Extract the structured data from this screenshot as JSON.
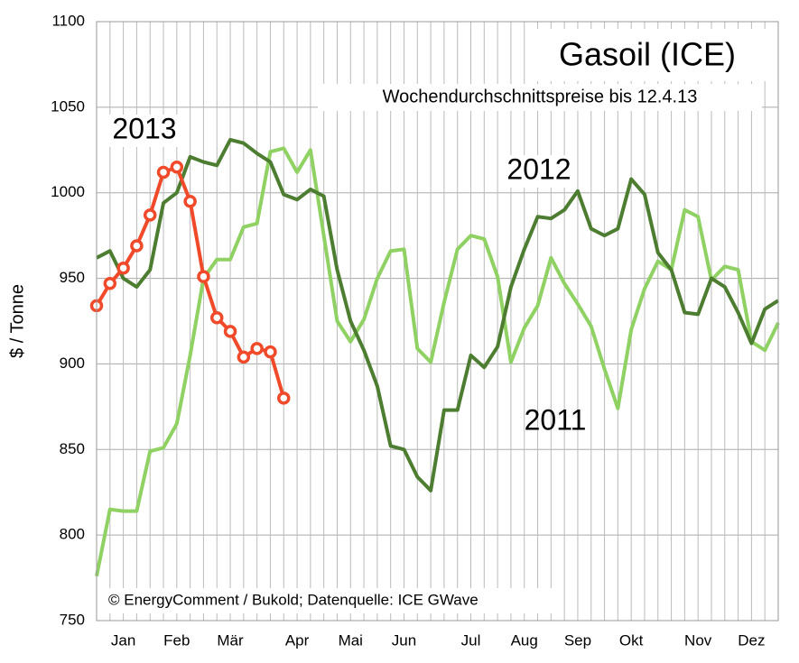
{
  "chart_data": {
    "type": "line",
    "title": "Gasoil (ICE)",
    "subtitle": "Wochendurchschnittspreise bis 12.4.13",
    "y_label": "$ / Tonne",
    "annotation": "© EnergyComment / Bukold; Datenquelle: ICE GWave",
    "categories": [
      null,
      null,
      "Jan",
      null,
      null,
      null,
      "Feb",
      null,
      null,
      null,
      "Mär",
      null,
      null,
      null,
      null,
      "Apr",
      null,
      null,
      null,
      "Mai",
      null,
      null,
      null,
      "Jun",
      null,
      null,
      null,
      null,
      "Jul",
      null,
      null,
      null,
      "Aug",
      null,
      null,
      null,
      "Sep",
      null,
      null,
      null,
      "Okt",
      null,
      null,
      null,
      null,
      "Nov",
      null,
      null,
      null,
      "Dez",
      null,
      null
    ],
    "ylim": [
      750,
      1100
    ],
    "yticks": [
      750,
      800,
      850,
      900,
      950,
      1000,
      1050,
      1100
    ],
    "grid": true,
    "series": [
      {
        "name": "2011",
        "color": "#8fd163",
        "markers": false,
        "values": [
          776,
          815,
          814,
          814,
          849,
          851,
          865,
          905,
          950,
          961,
          961,
          980,
          982,
          1024,
          1026,
          1012,
          1025,
          975,
          925,
          913,
          926,
          950,
          966,
          967,
          909,
          901,
          936,
          967,
          975,
          973,
          951,
          901,
          921,
          934,
          962,
          947,
          935,
          922,
          897,
          874,
          920,
          944,
          960,
          955,
          990,
          986,
          949,
          957,
          955,
          913,
          908,
          924
        ]
      },
      {
        "name": "2012",
        "color": "#4d7d31",
        "markers": false,
        "values": [
          962,
          966,
          950,
          945,
          955,
          994,
          1000,
          1021,
          1018,
          1016,
          1031,
          1029,
          1023,
          1018,
          999,
          996,
          1002,
          998,
          955,
          925,
          908,
          887,
          852,
          850,
          834,
          826,
          873,
          873,
          905,
          898,
          910,
          945,
          967,
          986,
          985,
          990,
          1001,
          979,
          975,
          979,
          1008,
          999,
          965,
          955,
          930,
          929,
          950,
          945,
          930,
          912,
          932,
          937
        ]
      },
      {
        "name": "2013",
        "color": "#f04a2a",
        "markers": true,
        "values": [
          934,
          947,
          956,
          969,
          987,
          1012,
          1015,
          995,
          951,
          927,
          919,
          904,
          909,
          907,
          880,
          null,
          null,
          null,
          null,
          null,
          null,
          null,
          null,
          null,
          null,
          null,
          null,
          null,
          null,
          null,
          null,
          null,
          null,
          null,
          null,
          null,
          null,
          null,
          null,
          null,
          null,
          null,
          null,
          null,
          null,
          null,
          null,
          null,
          null,
          null,
          null,
          null
        ]
      }
    ]
  }
}
